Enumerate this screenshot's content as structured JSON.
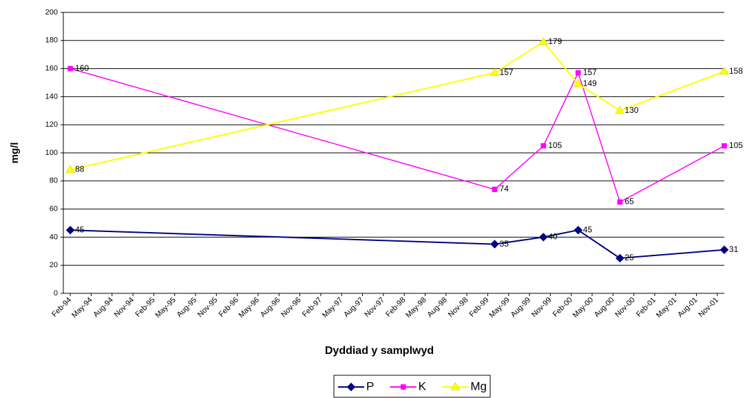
{
  "chart_data": {
    "type": "line",
    "x_label": "Dyddiad y samplwyd",
    "y_label": "mg/l",
    "x": [
      "1994-02",
      "1999-03",
      "1999-10",
      "2000-03",
      "2000-09",
      "2001-12"
    ],
    "series": [
      {
        "name": "P",
        "color": "#000080",
        "marker": "diamond",
        "values": [
          45,
          35,
          40,
          45,
          25,
          31
        ]
      },
      {
        "name": "K",
        "color": "#ff00ff",
        "marker": "square",
        "values": [
          160,
          74,
          105,
          157,
          65,
          105
        ]
      },
      {
        "name": "Mg",
        "color": "#ffff00",
        "marker": "triangle",
        "values": [
          88,
          157,
          179,
          149,
          130,
          158
        ]
      }
    ],
    "xlim": [
      "1994-01",
      "2001-12"
    ],
    "xticks": [
      {
        "value": "1994-02",
        "label": "Feb-94"
      },
      {
        "value": "1994-05",
        "label": "May-94"
      },
      {
        "value": "1994-08",
        "label": "Aug-94"
      },
      {
        "value": "1994-11",
        "label": "Nov-94"
      },
      {
        "value": "1995-02",
        "label": "Feb-95"
      },
      {
        "value": "1995-05",
        "label": "May-95"
      },
      {
        "value": "1995-08",
        "label": "Aug-95"
      },
      {
        "value": "1995-11",
        "label": "Nov-95"
      },
      {
        "value": "1996-02",
        "label": "Feb-96"
      },
      {
        "value": "1996-05",
        "label": "May-96"
      },
      {
        "value": "1996-08",
        "label": "Aug-96"
      },
      {
        "value": "1996-11",
        "label": "Nov-96"
      },
      {
        "value": "1997-02",
        "label": "Feb-97"
      },
      {
        "value": "1997-05",
        "label": "May-97"
      },
      {
        "value": "1997-08",
        "label": "Aug-97"
      },
      {
        "value": "1997-11",
        "label": "Nov-97"
      },
      {
        "value": "1998-02",
        "label": "Feb-98"
      },
      {
        "value": "1998-05",
        "label": "May-98"
      },
      {
        "value": "1998-08",
        "label": "Aug-98"
      },
      {
        "value": "1998-11",
        "label": "Nov-98"
      },
      {
        "value": "1999-02",
        "label": "Feb-99"
      },
      {
        "value": "1999-05",
        "label": "May-99"
      },
      {
        "value": "1999-08",
        "label": "Aug-99"
      },
      {
        "value": "1999-11",
        "label": "Nov-99"
      },
      {
        "value": "2000-02",
        "label": "Feb-00"
      },
      {
        "value": "2000-05",
        "label": "May-00"
      },
      {
        "value": "2000-08",
        "label": "Aug-00"
      },
      {
        "value": "2000-11",
        "label": "Nov-00"
      },
      {
        "value": "2001-02",
        "label": "Feb-01"
      },
      {
        "value": "2001-05",
        "label": "May-01"
      },
      {
        "value": "2001-08",
        "label": "Aug-01"
      },
      {
        "value": "2001-11",
        "label": "Nov-01"
      }
    ],
    "ylim": [
      0,
      200
    ],
    "yticks": [
      0,
      20,
      40,
      60,
      80,
      100,
      120,
      140,
      160,
      180,
      200
    ],
    "grid": true,
    "legend": "bottom"
  }
}
